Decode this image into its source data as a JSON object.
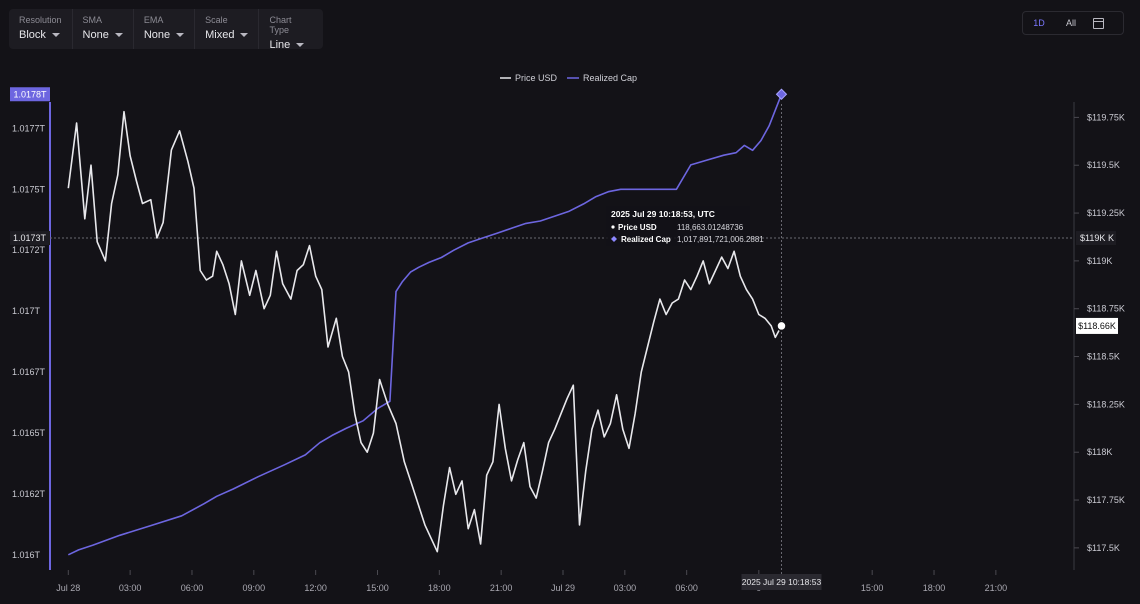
{
  "toolbar": [
    {
      "label": "Resolution",
      "value": "Block"
    },
    {
      "label": "SMA",
      "value": "None"
    },
    {
      "label": "EMA",
      "value": "None"
    },
    {
      "label": "Scale",
      "value": "Mixed"
    },
    {
      "label": "Chart Type",
      "value": "Line"
    }
  ],
  "range_buttons": {
    "day": "1D",
    "all": "All",
    "active": "1D"
  },
  "colors": {
    "price": "#e8e8ec",
    "realized_cap": "#6d66e0",
    "background": "#131217",
    "crosshair": "#6a6a72"
  },
  "chart_data": {
    "type": "line",
    "legend_position": "top-center",
    "grid": false,
    "x_ticks": [
      "Jul 28",
      "03:00",
      "06:00",
      "09:00",
      "12:00",
      "15:00",
      "18:00",
      "21:00",
      "Jul 29",
      "03:00",
      "06:00",
      "0",
      "15:00",
      "18:00",
      "21:00"
    ],
    "x_tick_hours": [
      0,
      3,
      6,
      9,
      12,
      15,
      18,
      21,
      24,
      27,
      30,
      33.5,
      39,
      42,
      45
    ],
    "x_range_hours": [
      -0.5,
      48.5
    ],
    "left_axis": {
      "labels": [
        "1.016T",
        "1.0162T",
        "1.0165T",
        "1.0167T",
        "1.017T",
        "1.0172T",
        "1.0175T",
        "1.0177T"
      ],
      "values": [
        1.016,
        1.01625,
        1.0165,
        1.01675,
        1.017,
        1.01725,
        1.0175,
        1.01775
      ],
      "range": [
        1.01595,
        1.01785
      ]
    },
    "right_axis": {
      "labels": [
        "$117.5K",
        "$117.75K",
        "$118K",
        "$118.25K",
        "$118.5K",
        "$118.75K",
        "$119K",
        "$119.25K",
        "$119.5K",
        "$119.75K"
      ],
      "values": [
        117.5,
        117.75,
        118,
        118.25,
        118.5,
        118.75,
        119,
        119.25,
        119.5,
        119.75
      ],
      "range": [
        117.4,
        119.82
      ]
    },
    "series": [
      {
        "name": "Price USD",
        "axis": "right",
        "x": [
          0,
          0.4,
          0.8,
          1.1,
          1.4,
          1.8,
          2.1,
          2.4,
          2.7,
          3.0,
          3.3,
          3.6,
          4.0,
          4.3,
          4.6,
          5.0,
          5.4,
          5.8,
          6.1,
          6.4,
          6.7,
          7.0,
          7.2,
          7.5,
          7.8,
          8.1,
          8.4,
          8.8,
          9.1,
          9.5,
          9.8,
          10.1,
          10.4,
          10.8,
          11.1,
          11.4,
          11.7,
          12.0,
          12.3,
          12.6,
          13.0,
          13.3,
          13.6,
          13.9,
          14.2,
          14.5,
          14.8,
          15.1,
          15.5,
          15.9,
          16.3,
          16.7,
          17.0,
          17.3,
          17.6,
          17.9,
          18.2,
          18.5,
          18.8,
          19.1,
          19.4,
          19.7,
          20.0,
          20.3,
          20.6,
          20.9,
          21.2,
          21.5,
          21.8,
          22.1,
          22.4,
          22.7,
          23.0,
          23.3,
          23.6,
          23.9,
          24.2,
          24.5,
          24.8,
          25.1,
          25.4,
          25.7,
          26.0,
          26.3,
          26.6,
          26.9,
          27.2,
          27.5,
          27.8,
          28.1,
          28.4,
          28.7,
          29.0,
          29.3,
          29.6,
          29.9,
          30.2,
          30.5,
          30.8,
          31.1,
          31.4,
          31.7,
          32.0,
          32.3,
          32.6,
          32.9,
          33.2,
          33.5,
          33.8,
          34.1,
          34.3,
          34.6
        ],
        "y": [
          119.38,
          119.72,
          119.22,
          119.5,
          119.1,
          119.0,
          119.3,
          119.45,
          119.78,
          119.55,
          119.42,
          119.3,
          119.32,
          119.12,
          119.2,
          119.58,
          119.68,
          119.52,
          119.38,
          118.95,
          118.9,
          118.92,
          119.05,
          118.98,
          118.88,
          118.72,
          119.0,
          118.82,
          118.95,
          118.75,
          118.82,
          119.05,
          118.88,
          118.8,
          118.95,
          118.98,
          119.08,
          118.92,
          118.85,
          118.55,
          118.7,
          118.5,
          118.42,
          118.2,
          118.05,
          118.0,
          118.1,
          118.38,
          118.25,
          118.15,
          117.95,
          117.82,
          117.72,
          117.62,
          117.55,
          117.48,
          117.72,
          117.92,
          117.78,
          117.85,
          117.6,
          117.7,
          117.52,
          117.88,
          117.95,
          118.25,
          118.02,
          117.85,
          117.96,
          118.05,
          117.82,
          117.76,
          117.9,
          118.05,
          118.12,
          118.2,
          118.28,
          118.35,
          117.62,
          117.9,
          118.12,
          118.22,
          118.08,
          118.15,
          118.3,
          118.12,
          118.02,
          118.2,
          118.42,
          118.55,
          118.68,
          118.8,
          118.72,
          118.78,
          118.8,
          118.9,
          118.85,
          118.92,
          119.0,
          118.88,
          118.95,
          119.02,
          118.96,
          119.05,
          118.92,
          118.85,
          118.8,
          118.72,
          118.7,
          118.66,
          118.6,
          118.66
        ]
      },
      {
        "name": "Realized Cap",
        "axis": "left",
        "x": [
          0,
          0.5,
          1.2,
          2.5,
          4.0,
          5.5,
          6.6,
          7.2,
          8.0,
          9.2,
          10.5,
          11.5,
          12.2,
          12.8,
          13.5,
          14.3,
          15.0,
          15.6,
          15.9,
          16.2,
          16.6,
          17.0,
          17.5,
          18.1,
          18.7,
          19.4,
          20.1,
          20.8,
          21.5,
          22.2,
          22.9,
          23.6,
          24.3,
          25.0,
          25.6,
          26.2,
          26.8,
          27.6,
          28.2,
          29.5,
          30.2,
          31.0,
          31.8,
          32.4,
          32.8,
          33.2,
          33.6,
          34.0,
          34.6
        ],
        "y": [
          1.016,
          1.01602,
          1.01604,
          1.01608,
          1.01612,
          1.01616,
          1.01621,
          1.01624,
          1.01627,
          1.01632,
          1.01637,
          1.01641,
          1.01646,
          1.01649,
          1.01652,
          1.01655,
          1.0166,
          1.01663,
          1.01708,
          1.01712,
          1.01716,
          1.01718,
          1.0172,
          1.01722,
          1.01725,
          1.01728,
          1.0173,
          1.01732,
          1.01734,
          1.01736,
          1.01737,
          1.01739,
          1.01741,
          1.01744,
          1.01747,
          1.01749,
          1.0175,
          1.0175,
          1.0175,
          1.0175,
          1.0176,
          1.01762,
          1.01764,
          1.01765,
          1.01768,
          1.01766,
          1.0177,
          1.01776,
          1.01789
        ]
      }
    ],
    "crosshair": {
      "x_hour": 34.6,
      "left_value": 1.0173,
      "left_value_label": "1.0173T",
      "right_value_label": "$119K",
      "right_label_suffix": "K",
      "point_price": 118.66,
      "price_label": "$118.66K",
      "top_marker_label": "1.0178T",
      "x_label": "2025 Jul 29 10:18:53"
    },
    "tooltip": {
      "title": "2025 Jul 29 10:18:53, UTC",
      "rows": [
        {
          "name": "Price USD",
          "value": "118,663.01248736"
        },
        {
          "name": "Realized Cap",
          "value": "1,017,891,721,006.2881"
        }
      ]
    }
  }
}
